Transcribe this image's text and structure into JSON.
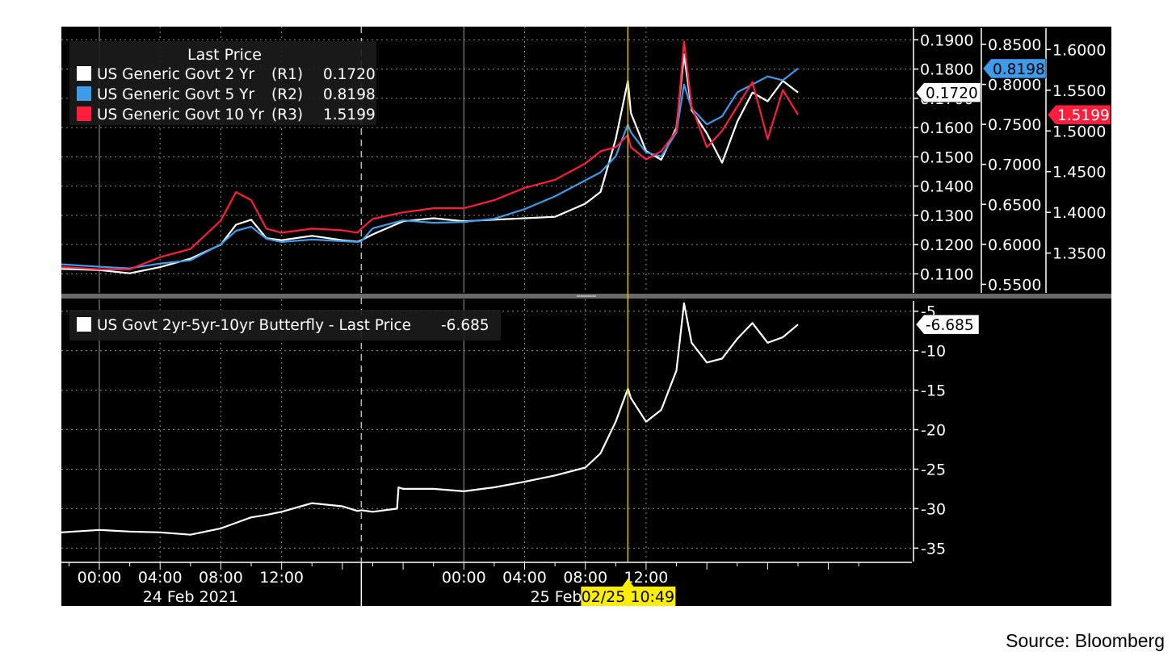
{
  "source": "Source: Bloomberg",
  "selection": {
    "time_label": "02/25 10:49"
  },
  "colors": {
    "background": "#000000",
    "grid": "#8a8a8a",
    "us2y": "#ffffff",
    "us5y": "#3d9be9",
    "us10y": "#ff1f3d",
    "butterfly": "#ffffff",
    "crosshair": "#d9c300",
    "highlight": "#ffee00"
  },
  "chart_data": [
    {
      "type": "line",
      "legend_title": "Last Price",
      "legend_placement": "top-left",
      "grid": true,
      "x_unit": "hour",
      "x_range": [
        -2.5,
        53.5
      ],
      "x_ticks": [
        {
          "x": 0,
          "label": "00:00"
        },
        {
          "x": 4,
          "label": "04:00"
        },
        {
          "x": 8,
          "label": "08:00"
        },
        {
          "x": 12,
          "label": "12:00"
        },
        {
          "x": 24,
          "label": "00:00"
        },
        {
          "x": 28,
          "label": "04:00"
        },
        {
          "x": 32,
          "label": "08:00"
        },
        {
          "x": 36,
          "label": "12:00"
        }
      ],
      "date_labels": [
        "24 Feb 2021",
        "25 Feb 202"
      ],
      "session_break_x": 17.25,
      "crosshair_x": 34.8,
      "axes": {
        "R1": {
          "min": 0.1035,
          "max": 0.1945,
          "ticks": [
            "0.1100",
            "0.1200",
            "0.1300",
            "0.1400",
            "0.1500",
            "0.1600",
            "0.1700",
            "0.1800",
            "0.1900"
          ]
        },
        "R2": {
          "min": 0.5393,
          "max": 0.8722,
          "ticks": [
            "0.5500",
            "0.6000",
            "0.6500",
            "0.7000",
            "0.7500",
            "0.8000",
            "0.8500"
          ]
        },
        "R3": {
          "min": 1.3011,
          "max": 1.6281,
          "ticks": [
            "1.3500",
            "1.4000",
            "1.4500",
            "1.5000",
            "1.5500",
            "1.6000"
          ]
        }
      },
      "series": [
        {
          "name": "US Generic Govt 2 Yr",
          "axis_tag": "(R1)",
          "last": "0.1720",
          "color": "#ffffff",
          "x": [
            -2.5,
            0,
            2,
            4,
            6,
            8,
            9,
            10,
            11,
            12,
            14,
            16,
            17,
            17.25,
            18,
            20,
            22,
            24,
            26,
            28,
            30,
            32,
            33,
            34,
            34.8,
            35,
            36,
            37,
            38,
            38.5,
            39,
            40,
            41,
            42,
            43,
            44,
            45,
            46
          ],
          "values": [
            0.1117,
            0.1113,
            0.1102,
            0.1123,
            0.1152,
            0.12,
            0.1268,
            0.1285,
            0.1222,
            0.1215,
            0.123,
            0.1215,
            0.121,
            0.1215,
            0.1235,
            0.128,
            0.129,
            0.128,
            0.1285,
            0.129,
            0.1295,
            0.134,
            0.138,
            0.156,
            0.176,
            0.165,
            0.152,
            0.149,
            0.16,
            0.185,
            0.166,
            0.158,
            0.148,
            0.162,
            0.172,
            0.169,
            0.176,
            0.172
          ]
        },
        {
          "name": "US Generic Govt 5 Yr",
          "axis_tag": "(R2)",
          "last": "0.8198",
          "color": "#3d9be9",
          "x": [
            -2.5,
            0,
            2,
            4,
            6,
            8,
            9,
            10,
            11,
            12,
            14,
            16,
            17,
            17.25,
            18,
            20,
            22,
            24,
            26,
            28,
            30,
            32,
            33,
            34,
            34.8,
            35,
            36,
            37,
            38,
            38.5,
            39,
            40,
            41,
            42,
            43,
            44,
            45,
            46
          ],
          "values": [
            0.575,
            0.572,
            0.57,
            0.576,
            0.58,
            0.6,
            0.617,
            0.622,
            0.607,
            0.603,
            0.606,
            0.604,
            0.603,
            0.604,
            0.62,
            0.63,
            0.627,
            0.628,
            0.632,
            0.644,
            0.66,
            0.68,
            0.69,
            0.71,
            0.75,
            0.74,
            0.715,
            0.71,
            0.74,
            0.8,
            0.77,
            0.75,
            0.76,
            0.79,
            0.8,
            0.81,
            0.805,
            0.8198
          ]
        },
        {
          "name": "US Generic Govt 10 Yr",
          "axis_tag": "(R3)",
          "last": "1.5199",
          "color": "#ff1f3d",
          "x": [
            -2.5,
            0,
            2,
            4,
            6,
            8,
            9,
            10,
            11,
            12,
            14,
            16,
            17,
            17.25,
            18,
            20,
            22,
            24,
            26,
            28,
            30,
            32,
            33,
            34,
            34.8,
            35,
            36,
            37,
            38,
            38.5,
            39,
            40,
            41,
            42,
            43,
            44,
            45,
            46
          ],
          "values": [
            1.333,
            1.33,
            1.33,
            1.345,
            1.355,
            1.39,
            1.425,
            1.415,
            1.38,
            1.375,
            1.38,
            1.378,
            1.375,
            1.38,
            1.392,
            1.4,
            1.405,
            1.405,
            1.415,
            1.43,
            1.44,
            1.46,
            1.475,
            1.48,
            1.495,
            1.48,
            1.465,
            1.475,
            1.5,
            1.61,
            1.53,
            1.48,
            1.5,
            1.53,
            1.56,
            1.49,
            1.55,
            1.5199
          ]
        }
      ]
    },
    {
      "type": "line",
      "legend_placement": "top-left",
      "grid": true,
      "ylim": [
        -36.7,
        -3.5
      ],
      "y_ticks": [
        -5,
        -10,
        -15,
        -20,
        -25,
        -30,
        -35
      ],
      "series": [
        {
          "name": "US Govt 2yr-5yr-10yr Butterfly - Last Price",
          "last": "-6.685",
          "color": "#ffffff",
          "x": [
            -2.5,
            0,
            2,
            4,
            6,
            8,
            9,
            10,
            11,
            12,
            14,
            16,
            17,
            17.25,
            18,
            19.6,
            19.7,
            20,
            22,
            24,
            26,
            28,
            30,
            32,
            33,
            34,
            34.8,
            35,
            36,
            37,
            38,
            38.5,
            39,
            40,
            41,
            42,
            43,
            44,
            45,
            46
          ],
          "values": [
            -33.0,
            -32.7,
            -32.9,
            -33.0,
            -33.3,
            -32.5,
            -31.8,
            -31.1,
            -30.8,
            -30.4,
            -29.3,
            -29.7,
            -30.3,
            -30.2,
            -30.4,
            -30.0,
            -27.3,
            -27.5,
            -27.5,
            -27.8,
            -27.3,
            -26.6,
            -25.8,
            -24.8,
            -23.0,
            -19.0,
            -14.8,
            -16.0,
            -19.0,
            -17.5,
            -12.5,
            -4.0,
            -9.0,
            -11.5,
            -11.0,
            -8.5,
            -6.5,
            -9.0,
            -8.3,
            -6.685
          ]
        }
      ]
    }
  ]
}
